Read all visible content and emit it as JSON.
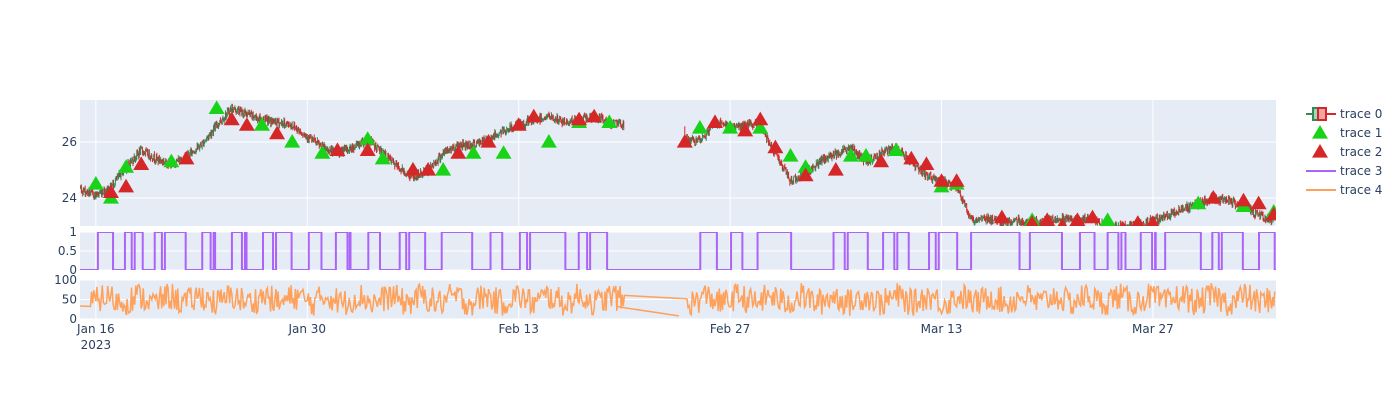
{
  "chart_data": {
    "type": "stock-subplots",
    "x_start": "2023-01-16",
    "x_end": "2023-04-04",
    "x_ticks": [
      {
        "date": "2023-01-16",
        "label": "Jan 16",
        "sublabel": "2023"
      },
      {
        "date": "2023-01-30",
        "label": "Jan 30"
      },
      {
        "date": "2023-02-13",
        "label": "Feb 13"
      },
      {
        "date": "2023-02-27",
        "label": "Feb 27"
      },
      {
        "date": "2023-03-13",
        "label": "Mar 13"
      },
      {
        "date": "2023-03-27",
        "label": "Mar 27"
      }
    ],
    "gaps": [
      [
        "2023-02-20",
        "2023-02-24"
      ]
    ],
    "panels": [
      {
        "name": "price",
        "ylim": [
          23.0,
          27.5
        ],
        "y_ticks": [
          24,
          26
        ],
        "path_points": [
          [
            "2023-01-14",
            24.5
          ],
          [
            "2023-01-16",
            24.1
          ],
          [
            "2023-01-17",
            24.4
          ],
          [
            "2023-01-18",
            25.1
          ],
          [
            "2023-01-19",
            25.7
          ],
          [
            "2023-01-20",
            25.4
          ],
          [
            "2023-01-21",
            25.2
          ],
          [
            "2023-01-22",
            25.5
          ],
          [
            "2023-01-23",
            25.9
          ],
          [
            "2023-01-24",
            26.6
          ],
          [
            "2023-01-25",
            27.2
          ],
          [
            "2023-01-26",
            27.0
          ],
          [
            "2023-01-27",
            26.8
          ],
          [
            "2023-01-28",
            26.7
          ],
          [
            "2023-01-29",
            26.6
          ],
          [
            "2023-01-30",
            26.2
          ],
          [
            "2023-01-31",
            25.8
          ],
          [
            "2023-02-01",
            25.6
          ],
          [
            "2023-02-02",
            25.8
          ],
          [
            "2023-02-03",
            26.1
          ],
          [
            "2023-02-04",
            25.6
          ],
          [
            "2023-02-05",
            25.1
          ],
          [
            "2023-02-06",
            24.7
          ],
          [
            "2023-02-07",
            25.0
          ],
          [
            "2023-02-08",
            25.6
          ],
          [
            "2023-02-09",
            25.9
          ],
          [
            "2023-02-10",
            25.9
          ],
          [
            "2023-02-11",
            26.1
          ],
          [
            "2023-02-12",
            26.4
          ],
          [
            "2023-02-13",
            26.6
          ],
          [
            "2023-02-14",
            26.8
          ],
          [
            "2023-02-15",
            26.9
          ],
          [
            "2023-02-16",
            26.7
          ],
          [
            "2023-02-17",
            26.8
          ],
          [
            "2023-02-18",
            26.9
          ],
          [
            "2023-02-19",
            26.7
          ],
          [
            "2023-02-25",
            26.0
          ],
          [
            "2023-02-26",
            26.7
          ],
          [
            "2023-02-27",
            26.5
          ],
          [
            "2023-02-28",
            26.6
          ],
          [
            "2023-03-01",
            26.6
          ],
          [
            "2023-03-02",
            25.6
          ],
          [
            "2023-03-03",
            24.6
          ],
          [
            "2023-03-04",
            24.9
          ],
          [
            "2023-03-05",
            25.3
          ],
          [
            "2023-03-06",
            25.6
          ],
          [
            "2023-03-07",
            25.8
          ],
          [
            "2023-03-08",
            25.3
          ],
          [
            "2023-03-09",
            25.6
          ],
          [
            "2023-03-10",
            25.8
          ],
          [
            "2023-03-11",
            25.3
          ],
          [
            "2023-03-12",
            24.8
          ],
          [
            "2023-03-13",
            24.6
          ],
          [
            "2023-03-14",
            24.4
          ],
          [
            "2023-03-15",
            23.2
          ],
          [
            "2023-03-16",
            23.3
          ],
          [
            "2023-03-17",
            23.1
          ],
          [
            "2023-03-18",
            23.2
          ],
          [
            "2023-03-19",
            23.1
          ],
          [
            "2023-03-20",
            23.2
          ],
          [
            "2023-03-21",
            23.3
          ],
          [
            "2023-03-22",
            23.2
          ],
          [
            "2023-03-23",
            23.3
          ],
          [
            "2023-03-24",
            22.9
          ],
          [
            "2023-03-25",
            23.0
          ],
          [
            "2023-03-26",
            23.0
          ],
          [
            "2023-03-27",
            23.2
          ],
          [
            "2023-03-28",
            23.4
          ],
          [
            "2023-03-29",
            23.6
          ],
          [
            "2023-03-30",
            23.8
          ],
          [
            "2023-03-31",
            24.0
          ],
          [
            "2023-04-01",
            23.9
          ],
          [
            "2023-04-02",
            23.7
          ],
          [
            "2023-04-03",
            23.4
          ],
          [
            "2023-04-04",
            23.2
          ]
        ],
        "trace1_up_points": [
          [
            "2023-01-16",
            24.5
          ],
          [
            "2023-01-17",
            24.0
          ],
          [
            "2023-01-18",
            25.1
          ],
          [
            "2023-01-21",
            25.3
          ],
          [
            "2023-01-24",
            27.2
          ],
          [
            "2023-01-27",
            26.6
          ],
          [
            "2023-01-29",
            26.0
          ],
          [
            "2023-01-31",
            25.6
          ],
          [
            "2023-02-03",
            26.1
          ],
          [
            "2023-02-04",
            25.4
          ],
          [
            "2023-02-06",
            25.0
          ],
          [
            "2023-02-08",
            25.0
          ],
          [
            "2023-02-10",
            25.6
          ],
          [
            "2023-02-12",
            25.6
          ],
          [
            "2023-02-15",
            26.0
          ],
          [
            "2023-02-17",
            26.7
          ],
          [
            "2023-02-19",
            26.7
          ],
          [
            "2023-02-25",
            26.5
          ],
          [
            "2023-02-27",
            26.5
          ],
          [
            "2023-03-01",
            26.5
          ],
          [
            "2023-03-03",
            25.5
          ],
          [
            "2023-03-04",
            25.1
          ],
          [
            "2023-03-07",
            25.5
          ],
          [
            "2023-03-08",
            25.5
          ],
          [
            "2023-03-10",
            25.7
          ],
          [
            "2023-03-13",
            24.4
          ],
          [
            "2023-03-14",
            24.5
          ],
          [
            "2023-03-19",
            23.2
          ],
          [
            "2023-03-21",
            23.0
          ],
          [
            "2023-03-24",
            23.2
          ],
          [
            "2023-03-26",
            23.1
          ],
          [
            "2023-03-30",
            23.8
          ],
          [
            "2023-04-02",
            23.7
          ],
          [
            "2023-04-04",
            23.5
          ]
        ],
        "trace2_down_points": [
          [
            "2023-01-17",
            24.2
          ],
          [
            "2023-01-18",
            24.4
          ],
          [
            "2023-01-19",
            25.2
          ],
          [
            "2023-01-22",
            25.4
          ],
          [
            "2023-01-25",
            26.8
          ],
          [
            "2023-01-26",
            26.6
          ],
          [
            "2023-01-28",
            26.3
          ],
          [
            "2023-02-01",
            25.7
          ],
          [
            "2023-02-03",
            25.7
          ],
          [
            "2023-02-06",
            25.0
          ],
          [
            "2023-02-07",
            25.0
          ],
          [
            "2023-02-09",
            25.6
          ],
          [
            "2023-02-11",
            26.0
          ],
          [
            "2023-02-13",
            26.6
          ],
          [
            "2023-02-14",
            26.9
          ],
          [
            "2023-02-17",
            26.8
          ],
          [
            "2023-02-18",
            26.9
          ],
          [
            "2023-02-24",
            26.0
          ],
          [
            "2023-02-26",
            26.7
          ],
          [
            "2023-02-28",
            26.4
          ],
          [
            "2023-03-01",
            26.8
          ],
          [
            "2023-03-02",
            25.8
          ],
          [
            "2023-03-04",
            24.8
          ],
          [
            "2023-03-06",
            25.0
          ],
          [
            "2023-03-09",
            25.3
          ],
          [
            "2023-03-11",
            25.4
          ],
          [
            "2023-03-12",
            25.2
          ],
          [
            "2023-03-13",
            24.6
          ],
          [
            "2023-03-14",
            24.6
          ],
          [
            "2023-03-17",
            23.3
          ],
          [
            "2023-03-19",
            23.1
          ],
          [
            "2023-03-20",
            23.2
          ],
          [
            "2023-03-21",
            23.0
          ],
          [
            "2023-03-22",
            23.2
          ],
          [
            "2023-03-23",
            23.3
          ],
          [
            "2023-03-25",
            22.9
          ],
          [
            "2023-03-26",
            23.1
          ],
          [
            "2023-03-27",
            23.1
          ],
          [
            "2023-03-31",
            24.0
          ],
          [
            "2023-04-02",
            23.9
          ],
          [
            "2023-04-03",
            23.8
          ],
          [
            "2023-04-04",
            23.4
          ]
        ]
      },
      {
        "name": "signal",
        "ylim": [
          0,
          1
        ],
        "y_ticks": [
          0,
          0.5,
          1
        ],
        "y_tick_labels": [
          "0",
          "0.5",
          "1"
        ],
        "steps": [
          [
            "2023-01-16",
            1
          ],
          [
            "2023-01-17",
            0
          ],
          [
            "2023-01-18",
            1
          ],
          [
            "2023-01-19",
            0
          ],
          [
            "2023-01-20",
            1
          ],
          [
            "2023-01-22",
            0
          ],
          [
            "2023-01-23",
            1
          ],
          [
            "2023-01-24",
            0
          ],
          [
            "2023-01-25",
            1
          ],
          [
            "2023-01-26",
            0
          ],
          [
            "2023-01-27",
            1
          ],
          [
            "2023-01-29",
            0
          ],
          [
            "2023-01-30",
            1
          ],
          [
            "2023-01-31",
            0
          ],
          [
            "2023-02-01",
            1
          ],
          [
            "2023-02-02",
            0
          ],
          [
            "2023-02-03",
            1
          ],
          [
            "2023-02-04",
            0
          ],
          [
            "2023-02-05",
            1
          ],
          [
            "2023-02-07",
            0
          ],
          [
            "2023-02-08",
            1
          ],
          [
            "2023-02-10",
            0
          ],
          [
            "2023-02-11",
            1
          ],
          [
            "2023-02-12",
            0
          ],
          [
            "2023-02-13",
            1
          ],
          [
            "2023-02-16",
            0
          ],
          [
            "2023-02-17",
            1
          ],
          [
            "2023-02-19",
            0
          ],
          [
            "2023-02-25",
            1
          ],
          [
            "2023-02-26",
            0
          ],
          [
            "2023-02-27",
            1
          ],
          [
            "2023-02-28",
            0
          ],
          [
            "2023-03-01",
            1
          ],
          [
            "2023-03-03",
            0
          ],
          [
            "2023-03-06",
            1
          ],
          [
            "2023-03-08",
            0
          ],
          [
            "2023-03-09",
            1
          ],
          [
            "2023-03-11",
            0
          ],
          [
            "2023-03-12",
            1
          ],
          [
            "2023-03-14",
            0
          ],
          [
            "2023-03-15",
            1
          ],
          [
            "2023-03-18",
            0
          ],
          [
            "2023-03-19",
            1
          ],
          [
            "2023-03-21",
            0
          ],
          [
            "2023-03-22",
            1
          ],
          [
            "2023-03-23",
            0
          ],
          [
            "2023-03-24",
            1
          ],
          [
            "2023-03-25",
            0
          ],
          [
            "2023-03-26",
            1
          ],
          [
            "2023-03-27",
            0
          ],
          [
            "2023-03-28",
            1
          ],
          [
            "2023-03-30",
            0
          ],
          [
            "2023-03-31",
            1
          ],
          [
            "2023-04-02",
            0
          ],
          [
            "2023-04-03",
            1
          ],
          [
            "2023-04-04",
            0
          ]
        ]
      },
      {
        "name": "oscillator",
        "ylim": [
          0,
          100
        ],
        "y_ticks": [
          0,
          50,
          100
        ],
        "base_level": 50
      }
    ],
    "legend": [
      {
        "label": "trace 0",
        "kind": "candlestick",
        "color": "#2f8a58",
        "fill": "#f4a3a0"
      },
      {
        "label": "trace 1",
        "kind": "triangle-up",
        "color": "#19d319"
      },
      {
        "label": "trace 2",
        "kind": "triangle-up",
        "color": "#d62728"
      },
      {
        "label": "trace 3",
        "kind": "line",
        "color": "#ab63fa"
      },
      {
        "label": "trace 4",
        "kind": "line",
        "color": "#ffa15a"
      }
    ],
    "colors": {
      "plot_bg": "#e5ecf6",
      "grid": "#ffffff",
      "candle_up": "#2f8a58",
      "candle_down": "#d62728",
      "tick_text": "#2a3f5f"
    }
  }
}
